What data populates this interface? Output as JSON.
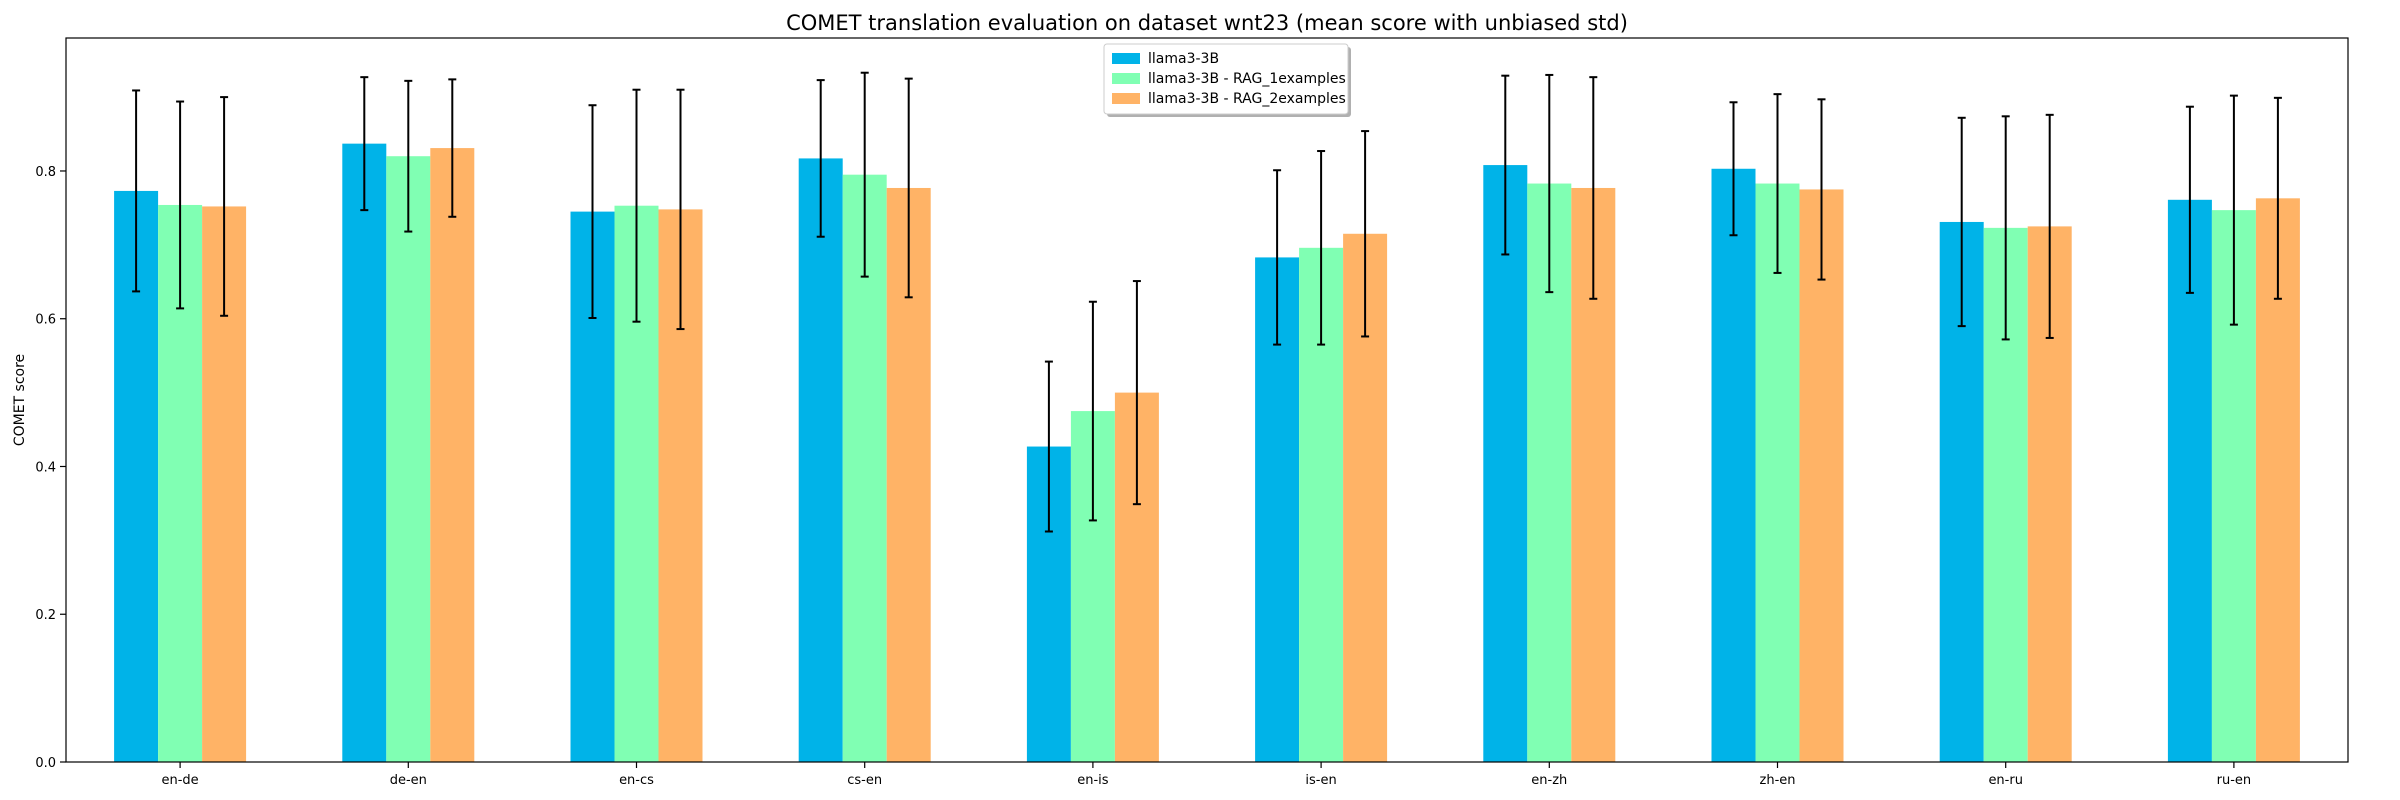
{
  "chart_data": {
    "type": "bar",
    "title": "COMET translation evaluation on dataset wnt23 (mean score with unbiased std)",
    "xlabel": "",
    "ylabel": "COMET score",
    "ylim": [
      0,
      0.98
    ],
    "yticks": [
      0.0,
      0.2,
      0.4,
      0.6,
      0.8
    ],
    "ytick_labels": [
      "0.0",
      "0.2",
      "0.4",
      "0.6",
      "0.8"
    ],
    "categories": [
      "en-de",
      "de-en",
      "en-cs",
      "cs-en",
      "en-is",
      "is-en",
      "en-zh",
      "zh-en",
      "en-ru",
      "ru-en"
    ],
    "legend_position": "top-center",
    "grid": false,
    "series": [
      {
        "name": "llama3-3B",
        "color": "#00b3e8",
        "values": [
          0.773,
          0.837,
          0.745,
          0.817,
          0.427,
          0.683,
          0.808,
          0.803,
          0.731,
          0.761
        ],
        "std": [
          0.136,
          0.09,
          0.144,
          0.106,
          0.115,
          0.118,
          0.121,
          0.09,
          0.141,
          0.126
        ]
      },
      {
        "name": "llama3-3B - RAG_1examples",
        "color": "#80ffb3",
        "values": [
          0.754,
          0.82,
          0.753,
          0.795,
          0.475,
          0.696,
          0.783,
          0.783,
          0.723,
          0.747
        ],
        "std": [
          0.14,
          0.102,
          0.157,
          0.138,
          0.148,
          0.131,
          0.147,
          0.121,
          0.151,
          0.155
        ]
      },
      {
        "name": "llama3-3B - RAG_2examples",
        "color": "#ffb366",
        "values": [
          0.752,
          0.831,
          0.748,
          0.777,
          0.5,
          0.715,
          0.777,
          0.775,
          0.725,
          0.763
        ],
        "std": [
          0.148,
          0.093,
          0.162,
          0.148,
          0.151,
          0.139,
          0.15,
          0.122,
          0.151,
          0.136
        ]
      }
    ]
  }
}
